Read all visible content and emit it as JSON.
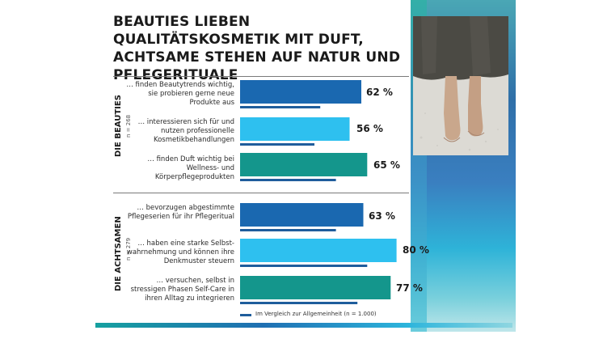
{
  "title": "BEAUTIES LIEBEN QUALITÄTSKOSMETIK MIT DUFT, ACHTSAME STEHEN AUF NATUR UND PFLEGERITUALE",
  "legend": "Im Vergleich zur Allgemeinheit (n = 1.000)",
  "colors": {
    "dark_blue": "#1a68b0",
    "light_blue": "#2ec0ef",
    "teal": "#14968c",
    "comparison": "#1f5d9c"
  },
  "photo_icon": "barefoot-photo",
  "chart_data": {
    "type": "bar",
    "orientation": "horizontal",
    "title": "BEAUTIES LIEBEN QUALITÄTSKOSMETIK MIT DUFT, ACHTSAME STEHEN AUF NATUR UND PFLEGERITUALE",
    "unit": "%",
    "xlim": [
      0,
      100
    ],
    "groups": [
      {
        "name": "DIE BEAUTIES",
        "n": "n = 268",
        "items": [
          {
            "label": "… finden Beautytrends wichtig, sie probieren gerne neue Produkte aus",
            "value": 62,
            "value_label": "62 %",
            "comparison": 41,
            "color": "dark_blue"
          },
          {
            "label": "… interessieren sich für und nutzen professionelle Kosmetikbehandlungen",
            "value": 56,
            "value_label": "56 %",
            "comparison": 38,
            "color": "light_blue"
          },
          {
            "label": "… finden Duft wichtig bei Wellness- und Körperpflegeprodukten",
            "value": 65,
            "value_label": "65 %",
            "comparison": 49,
            "color": "teal"
          }
        ]
      },
      {
        "name": "DIE ACHTSAMEN",
        "n": "n = 279",
        "items": [
          {
            "label": "… bevorzugen abgestimmte Pflegeserien für ihr Pflegeritual",
            "value": 63,
            "value_label": "63 %",
            "comparison": 49,
            "color": "dark_blue"
          },
          {
            "label": "… haben eine starke Selbst-wahrnehmung und können ihre Denkmuster steuern",
            "value": 80,
            "value_label": "80 %",
            "comparison": 65,
            "color": "light_blue"
          },
          {
            "label": "… versuchen, selbst in stressigen Phasen Self-Care in ihren Alltag zu integrieren",
            "value": 77,
            "value_label": "77 %",
            "comparison": 60,
            "color": "teal"
          }
        ]
      }
    ],
    "legend": [
      "Im Vergleich zur Allgemeinheit (n = 1.000)"
    ]
  }
}
